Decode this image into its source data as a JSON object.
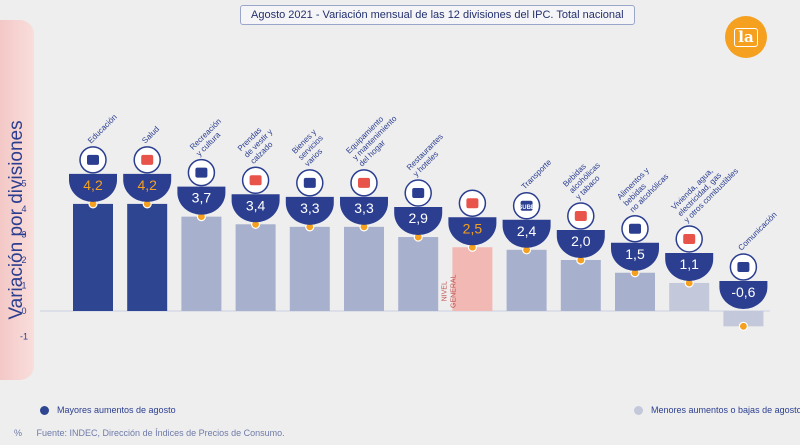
{
  "title": "Agosto 2021 - Variación mensual de las 12 divisiones del IPC. Total nacional",
  "logo_text": "la",
  "ylabel": "Variación por divisiones",
  "legend": {
    "high_label": "Mayores aumentos de agosto",
    "low_label": "Menores aumentos o bajas de agosto"
  },
  "source_prefix": "%",
  "source": "Fuente: INDEC, Dirección de Índices de Precios de Consumo.",
  "colors": {
    "high": "#2e4591",
    "low": "#a7b0cc",
    "lowest": "#c3c8da",
    "general": "#f2b8b4",
    "marker": "#f5a01e",
    "badge": "#2b3e8f"
  },
  "chart_data": {
    "type": "bar",
    "ylim": [
      -1,
      5
    ],
    "yticks": [
      "5",
      "4",
      "3",
      "2",
      "1",
      "0",
      "-1"
    ],
    "yticks_values": [
      5,
      4,
      3,
      2,
      1,
      0,
      -1
    ],
    "grid": false,
    "legend_position": "bottom",
    "categories": [
      {
        "label_lines": [
          "Educación"
        ],
        "value": 4.2,
        "display": "4,2",
        "group": "high",
        "icon": "notebook-pencil-icon"
      },
      {
        "label_lines": [
          "Salud"
        ],
        "value": 4.2,
        "display": "4,2",
        "group": "high",
        "icon": "medical-cross-icon"
      },
      {
        "label_lines": [
          "Recreación",
          "y cultura"
        ],
        "value": 3.7,
        "display": "3,7",
        "group": "low",
        "icon": "beach-umbrella-icon"
      },
      {
        "label_lines": [
          "Prendas",
          "de vestir y",
          "calzado"
        ],
        "value": 3.4,
        "display": "3,4",
        "group": "low",
        "icon": "tshirt-icon"
      },
      {
        "label_lines": [
          "Bienes y",
          "servicios",
          "varios"
        ],
        "value": 3.3,
        "display": "3,3",
        "group": "low",
        "icon": "comb-scissors-icon"
      },
      {
        "label_lines": [
          "Equipamiento",
          "y mantenimiento",
          "del hogar"
        ],
        "value": 3.3,
        "display": "3,3",
        "group": "low",
        "icon": "washing-machine-icon"
      },
      {
        "label_lines": [
          "Restaurantes",
          "y hoteles"
        ],
        "value": 2.9,
        "display": "2,9",
        "group": "low",
        "icon": "plate-cutlery-icon"
      },
      {
        "label_lines": [],
        "value": 2.5,
        "display": "2,5",
        "group": "general",
        "icon": "shopping-basket-icon",
        "bar_text_lines": [
          "NIVEL",
          "GENERAL"
        ]
      },
      {
        "label_lines": [
          "Transporte"
        ],
        "value": 2.4,
        "display": "2,4",
        "group": "low",
        "icon": "bus-sube-icon",
        "icon_text": "SUBE"
      },
      {
        "label_lines": [
          "Bebidas",
          "alcohólicas",
          "y tabaco"
        ],
        "value": 2.0,
        "display": "2,0",
        "group": "low",
        "icon": "wine-bottle-icon"
      },
      {
        "label_lines": [
          "Alimentos y",
          "bebidas",
          "no alcohólicas"
        ],
        "value": 1.5,
        "display": "1,5",
        "group": "low",
        "icon": "groceries-icon"
      },
      {
        "label_lines": [
          "Vivienda, agua,",
          "electricidad, gas",
          "y otros combustibles"
        ],
        "value": 1.1,
        "display": "1,1",
        "group": "lowest",
        "icon": "lightbulb-icon"
      },
      {
        "label_lines": [
          "Comunicación"
        ],
        "value": -0.6,
        "display": "-0,6",
        "group": "lowest",
        "icon": "smartphone-icon"
      }
    ]
  }
}
